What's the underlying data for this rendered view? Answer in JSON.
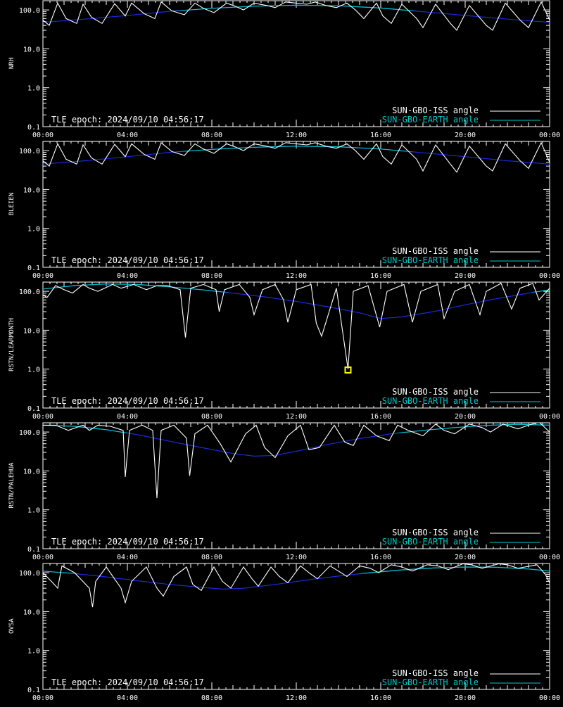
{
  "chart_data": [
    {
      "type": "line",
      "ylabel": "NRH",
      "yscale": "log",
      "ylim": [
        0.1,
        180
      ],
      "yticks": [
        "0.1",
        "1.0",
        "10.0",
        "100.0"
      ],
      "xlim": [
        0,
        24
      ],
      "xticks": [
        "00:00",
        "04:00",
        "08:00",
        "12:00",
        "16:00",
        "20:00",
        "00:00"
      ],
      "epoch_label": "TLE epoch: 2024/09/10 04:56:17",
      "series": [
        {
          "name": "SUN-GBO-ISS angle",
          "color": "#ffffff",
          "x": [
            0,
            0.3,
            0.7,
            1.1,
            1.6,
            1.9,
            2.3,
            2.8,
            3.4,
            3.9,
            4.2,
            4.8,
            5.3,
            5.6,
            6.1,
            6.7,
            7.2,
            7.6,
            8.1,
            8.7,
            9.1,
            9.5,
            10.0,
            10.6,
            11.0,
            11.5,
            12.0,
            12.5,
            12.9,
            13.4,
            13.9,
            14.4,
            14.8,
            15.2,
            15.8,
            16.1,
            16.5,
            17.0,
            17.7,
            18.0,
            18.6,
            19.3,
            19.6,
            20.2,
            21.0,
            21.3,
            21.9,
            22.6,
            23.0,
            23.6,
            24.0
          ],
          "y": [
            55,
            40,
            150,
            60,
            45,
            140,
            65,
            45,
            145,
            70,
            150,
            80,
            60,
            160,
            95,
            75,
            150,
            110,
            85,
            150,
            125,
            100,
            150,
            130,
            115,
            160,
            150,
            140,
            160,
            130,
            115,
            150,
            100,
            60,
            150,
            70,
            45,
            140,
            60,
            35,
            140,
            45,
            30,
            130,
            40,
            30,
            150,
            55,
            35,
            160,
            55
          ]
        },
        {
          "name": "SUN-GBO-EARTH angle",
          "color": "#00c8c8",
          "x": [
            0,
            2,
            4,
            6,
            8,
            10,
            12,
            14,
            16,
            18,
            20,
            22,
            24
          ],
          "y": [
            48,
            58,
            72,
            92,
            110,
            125,
            132,
            128,
            112,
            90,
            72,
            58,
            48
          ]
        }
      ]
    },
    {
      "type": "line",
      "ylabel": "BLEIEN",
      "yscale": "log",
      "ylim": [
        0.1,
        180
      ],
      "yticks": [
        "0.1",
        "1.0",
        "10.0",
        "100.0"
      ],
      "xlim": [
        0,
        24
      ],
      "xticks": [
        "00:00",
        "04:00",
        "08:00",
        "12:00",
        "16:00",
        "20:00",
        "00:00"
      ],
      "epoch_label": "TLE epoch: 2024/09/10 04:56:17",
      "series": [
        {
          "name": "SUN-GBO-ISS angle",
          "color": "#ffffff",
          "x": [
            0,
            0.3,
            0.7,
            1.1,
            1.6,
            1.9,
            2.3,
            2.8,
            3.4,
            3.9,
            4.2,
            4.8,
            5.3,
            5.6,
            6.1,
            6.7,
            7.2,
            7.6,
            8.1,
            8.7,
            9.1,
            9.5,
            10.0,
            10.6,
            11.0,
            11.5,
            12.0,
            12.5,
            12.9,
            13.4,
            13.9,
            14.4,
            14.8,
            15.2,
            15.8,
            16.1,
            16.5,
            17.0,
            17.7,
            18.0,
            18.6,
            19.3,
            19.6,
            20.2,
            21.0,
            21.3,
            21.9,
            22.6,
            23.0,
            23.6,
            24.0
          ],
          "y": [
            55,
            40,
            150,
            60,
            45,
            140,
            65,
            45,
            145,
            70,
            150,
            80,
            60,
            160,
            95,
            75,
            150,
            110,
            85,
            150,
            125,
            100,
            150,
            130,
            115,
            160,
            150,
            140,
            160,
            130,
            115,
            150,
            100,
            60,
            150,
            70,
            45,
            140,
            60,
            30,
            140,
            45,
            28,
            130,
            40,
            30,
            150,
            55,
            35,
            160,
            50
          ]
        },
        {
          "name": "SUN-GBO-EARTH angle",
          "color": "#00c8c8",
          "x": [
            0,
            2,
            4,
            6,
            8,
            10,
            12,
            14,
            16,
            18,
            20,
            22,
            24
          ],
          "y": [
            45,
            55,
            70,
            90,
            108,
            122,
            130,
            126,
            110,
            88,
            70,
            55,
            45
          ]
        }
      ]
    },
    {
      "type": "line",
      "ylabel": "RSTN/LEARMONTH",
      "yscale": "log",
      "ylim": [
        0.1,
        180
      ],
      "yticks": [
        "0.1",
        "1.0",
        "10.0",
        "100.0"
      ],
      "xlim": [
        0,
        24
      ],
      "xticks": [
        "00:00",
        "04:00",
        "08:00",
        "12:00",
        "16:00",
        "20:00",
        "00:00"
      ],
      "epoch_label": "TLE epoch: 2024/09/10 04:56:17",
      "marker": {
        "x": 14.45,
        "y": 0.95,
        "color": "#ffff00"
      },
      "series": [
        {
          "name": "SUN-GBO-ISS angle",
          "color": "#ffffff",
          "x": [
            0,
            0.2,
            0.6,
            1.0,
            1.4,
            1.9,
            2.2,
            2.6,
            3.3,
            3.7,
            4.3,
            4.9,
            5.4,
            5.9,
            6.5,
            6.75,
            7.0,
            7.6,
            8.2,
            8.35,
            8.6,
            9.3,
            9.8,
            10.0,
            10.4,
            11.0,
            11.4,
            11.6,
            12.0,
            12.7,
            12.95,
            13.2,
            13.9,
            14.45,
            14.7,
            15.4,
            15.95,
            16.3,
            17.1,
            17.5,
            17.9,
            18.7,
            19.0,
            19.5,
            20.2,
            20.7,
            21.0,
            21.7,
            22.2,
            22.6,
            23.2,
            23.5,
            24.0
          ],
          "y": [
            80,
            70,
            140,
            110,
            90,
            150,
            120,
            100,
            150,
            120,
            150,
            110,
            140,
            140,
            110,
            6.5,
            120,
            150,
            110,
            30,
            110,
            150,
            70,
            25,
            110,
            150,
            60,
            16,
            110,
            150,
            15,
            7,
            120,
            1.0,
            100,
            140,
            12,
            100,
            150,
            16,
            100,
            150,
            20,
            100,
            150,
            25,
            100,
            160,
            35,
            120,
            160,
            60,
            120
          ]
        },
        {
          "name": "SUN-GBO-EARTH angle",
          "color": "#00c8c8",
          "x": [
            0,
            1.5,
            3,
            4.5,
            6,
            7.5,
            9,
            10.5,
            12,
            13.5,
            15,
            16,
            17,
            18.5,
            20,
            21.5,
            23,
            24
          ],
          "y": [
            115,
            140,
            155,
            150,
            130,
            110,
            90,
            72,
            55,
            40,
            28,
            20,
            22,
            30,
            45,
            65,
            90,
            110
          ]
        }
      ]
    },
    {
      "type": "line",
      "ylabel": "RSTN/PALEHUA",
      "yscale": "log",
      "ylim": [
        0.1,
        180
      ],
      "yticks": [
        "0.1",
        "1.0",
        "10.0",
        "100.0"
      ],
      "xlim": [
        0,
        24
      ],
      "xticks": [
        "00:00",
        "04:00",
        "08:00",
        "12:00",
        "16:00",
        "20:00",
        "00:00"
      ],
      "epoch_label": "TLE epoch: 2024/09/10 04:56:17",
      "series": [
        {
          "name": "SUN-GBO-ISS angle",
          "color": "#ffffff",
          "x": [
            0,
            0.6,
            1.2,
            1.9,
            2.2,
            2.6,
            3.2,
            3.8,
            3.9,
            4.1,
            4.7,
            5.2,
            5.4,
            5.6,
            6.2,
            6.8,
            6.95,
            7.2,
            7.8,
            8.4,
            8.9,
            9.6,
            10.1,
            10.5,
            11.0,
            11.6,
            12.2,
            12.6,
            13.1,
            13.8,
            14.3,
            14.7,
            15.2,
            15.8,
            16.4,
            16.8,
            17.3,
            18.0,
            18.6,
            19.0,
            19.5,
            20.2,
            20.8,
            21.2,
            21.8,
            22.5,
            23.0,
            23.5,
            24.0
          ],
          "y": [
            150,
            150,
            110,
            150,
            110,
            150,
            140,
            110,
            7,
            110,
            150,
            110,
            2,
            110,
            150,
            70,
            7.5,
            90,
            150,
            50,
            17,
            90,
            150,
            40,
            22,
            80,
            150,
            35,
            40,
            150,
            55,
            45,
            150,
            80,
            60,
            150,
            110,
            80,
            160,
            110,
            90,
            160,
            130,
            100,
            160,
            120,
            150,
            180,
            100
          ]
        },
        {
          "name": "SUN-GBO-EARTH angle",
          "color": "#00c8c8",
          "x": [
            0,
            1.5,
            3,
            4.5,
            6,
            7.5,
            9,
            10,
            11,
            12,
            13.5,
            15,
            16.5,
            18,
            19.5,
            21,
            22.5,
            24
          ],
          "y": [
            150,
            140,
            115,
            85,
            58,
            40,
            28,
            24,
            25,
            32,
            48,
            68,
            90,
            110,
            130,
            148,
            158,
            150
          ]
        }
      ]
    },
    {
      "type": "line",
      "ylabel": "OVSA",
      "yscale": "log",
      "ylim": [
        0.1,
        180
      ],
      "yticks": [
        "0.1",
        "1.0",
        "10.0",
        "100.0"
      ],
      "xlim": [
        0,
        24
      ],
      "xticks": [
        "00:00",
        "04:00",
        "08:00",
        "12:00",
        "16:00",
        "20:00",
        "00:00"
      ],
      "epoch_label": "TLE epoch: 2024/09/10 04:56:17",
      "series": [
        {
          "name": "SUN-GBO-ISS angle",
          "color": "#ffffff",
          "x": [
            0,
            0.4,
            0.7,
            0.9,
            1.5,
            2.2,
            2.35,
            2.5,
            3.0,
            3.7,
            3.9,
            4.2,
            4.9,
            5.4,
            5.7,
            6.2,
            6.8,
            7.1,
            7.5,
            8.1,
            8.5,
            8.9,
            9.5,
            9.9,
            10.2,
            10.8,
            11.2,
            11.6,
            12.2,
            12.6,
            13.0,
            13.6,
            14.0,
            14.4,
            15.0,
            15.5,
            15.9,
            16.5,
            17.0,
            17.5,
            18.2,
            18.7,
            19.2,
            19.9,
            20.3,
            20.8,
            21.6,
            22.0,
            22.5,
            23.4,
            23.8,
            24.0
          ],
          "y": [
            100,
            60,
            40,
            150,
            100,
            40,
            13,
            60,
            140,
            40,
            17,
            60,
            140,
            40,
            25,
            80,
            140,
            50,
            35,
            140,
            60,
            40,
            140,
            70,
            45,
            140,
            80,
            55,
            150,
            100,
            70,
            150,
            110,
            80,
            150,
            130,
            100,
            160,
            140,
            110,
            160,
            150,
            120,
            170,
            160,
            130,
            170,
            160,
            130,
            160,
            90,
            55
          ]
        },
        {
          "name": "SUN-GBO-EARTH angle",
          "color": "#00c8c8",
          "x": [
            0,
            1.5,
            3,
            4.5,
            6,
            7.5,
            8.5,
            9.5,
            11,
            12.5,
            14,
            15.5,
            17,
            18.5,
            20,
            21.5,
            23,
            24
          ],
          "y": [
            110,
            95,
            78,
            62,
            50,
            42,
            38,
            40,
            50,
            65,
            82,
            100,
            118,
            132,
            140,
            138,
            125,
            110
          ]
        }
      ]
    }
  ]
}
